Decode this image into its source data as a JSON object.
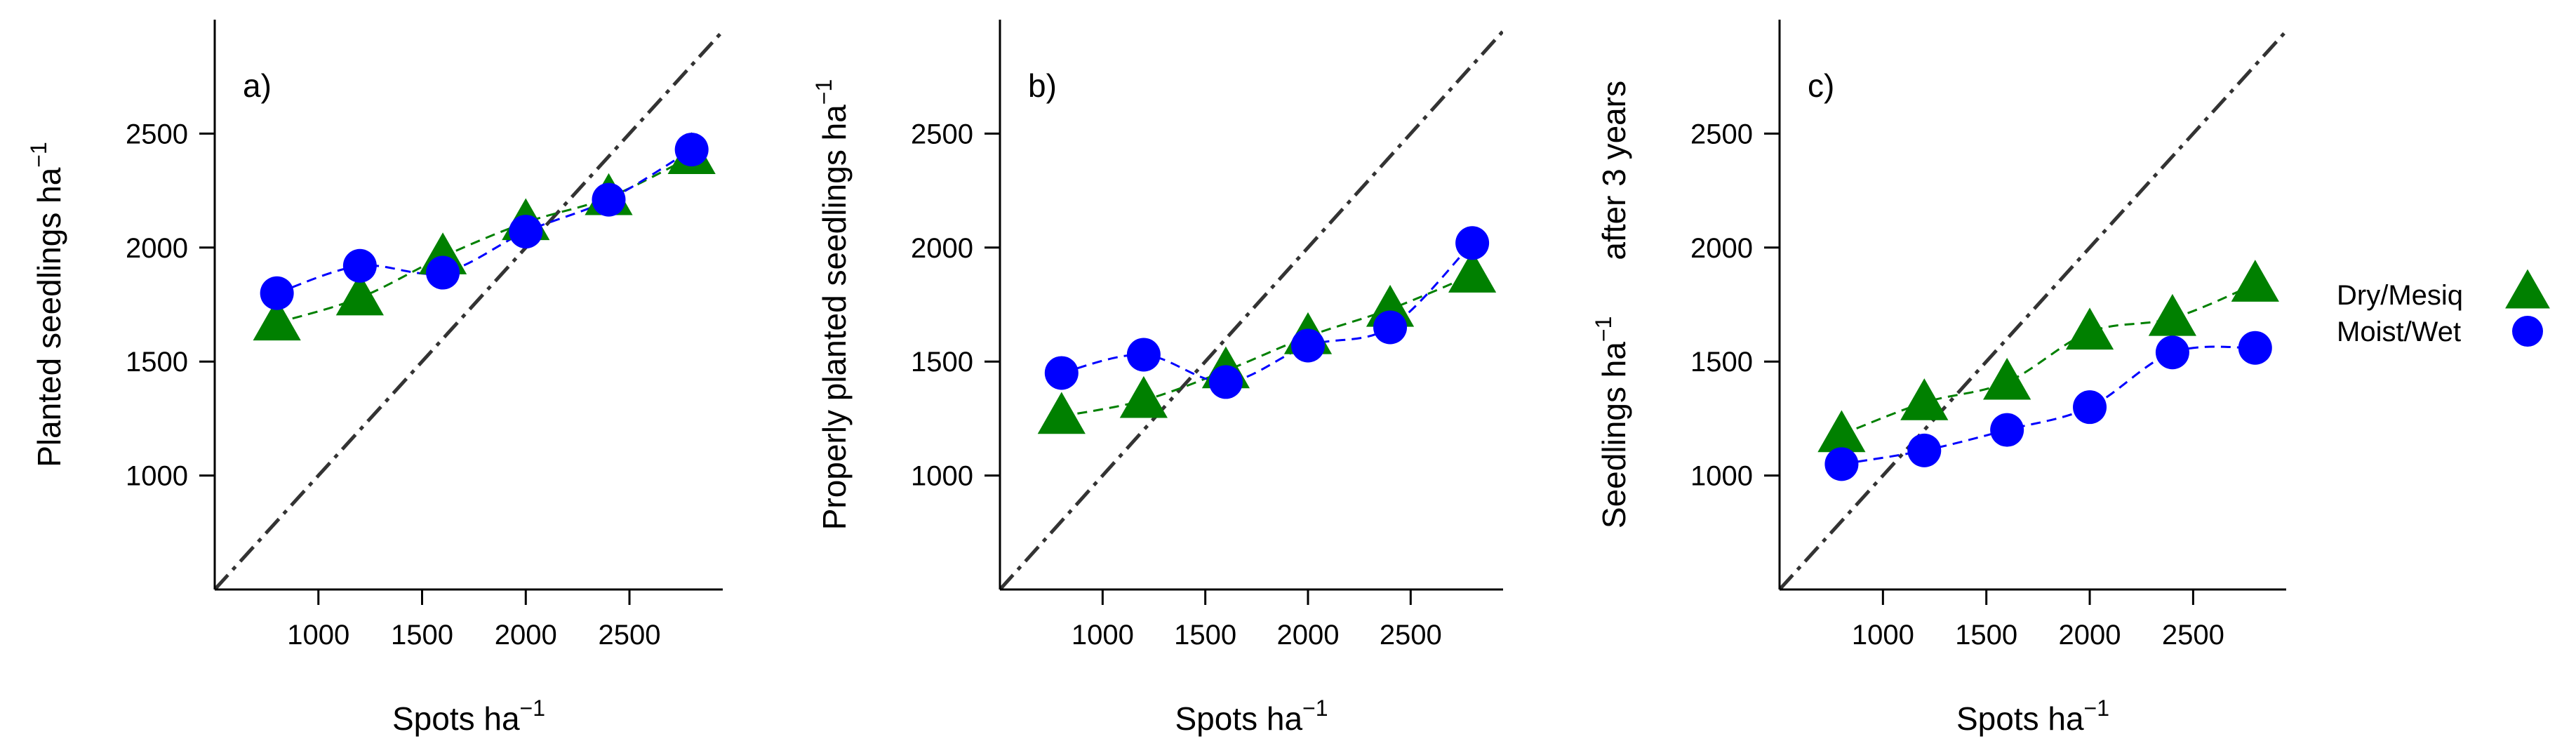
{
  "chart_data": [
    {
      "type": "scatter",
      "panel_label": "a)",
      "xlabel": "Spots  ha",
      "xlabel_sup": "−1",
      "ylabel": "Planted seedlings ha",
      "ylabel_sup": "−1",
      "xlim": [
        500,
        2950
      ],
      "ylim": [
        500,
        3000
      ],
      "xticks": [
        1000,
        1500,
        2000,
        2500
      ],
      "yticks": [
        1000,
        1500,
        2000,
        2500
      ],
      "reference_line": "1:1",
      "grid": false,
      "series": [
        {
          "name": "Dry/Mesiq",
          "marker": "triangle",
          "color": "#008000",
          "x": [
            800,
            1200,
            1600,
            2000,
            2400,
            2800
          ],
          "y": [
            1670,
            1780,
            1960,
            2110,
            2220,
            2400
          ]
        },
        {
          "name": "Moist/Wet",
          "marker": "circle",
          "color": "#0000FF",
          "x": [
            800,
            1200,
            1600,
            2000,
            2400,
            2800
          ],
          "y": [
            1800,
            1920,
            1890,
            2070,
            2210,
            2430
          ]
        }
      ]
    },
    {
      "type": "scatter",
      "panel_label": "b)",
      "xlabel": "Spots  ha",
      "xlabel_sup": "−1",
      "ylabel": "Properly planted seedlings ha",
      "ylabel_sup": "−1",
      "xlim": [
        500,
        2950
      ],
      "ylim": [
        500,
        3000
      ],
      "xticks": [
        1000,
        1500,
        2000,
        2500
      ],
      "yticks": [
        1000,
        1500,
        2000,
        2500
      ],
      "reference_line": "1:1",
      "grid": false,
      "series": [
        {
          "name": "Dry/Mesiq",
          "marker": "triangle",
          "color": "#008000",
          "x": [
            800,
            1200,
            1600,
            2000,
            2400,
            2800
          ],
          "y": [
            1260,
            1330,
            1460,
            1610,
            1730,
            1880
          ]
        },
        {
          "name": "Moist/Wet",
          "marker": "circle",
          "color": "#0000FF",
          "x": [
            800,
            1200,
            1600,
            2000,
            2400,
            2800
          ],
          "y": [
            1450,
            1530,
            1410,
            1570,
            1650,
            2020
          ]
        }
      ]
    },
    {
      "type": "scatter",
      "panel_label": "c)",
      "xlabel": "Spots  ha",
      "xlabel_sup": "−1",
      "ylabel": "Seedlings  ha",
      "ylabel_sup": "−1",
      "ylabel_suffix": "after 3 years",
      "xlim": [
        500,
        2950
      ],
      "ylim": [
        500,
        3000
      ],
      "xticks": [
        1000,
        1500,
        2000,
        2500
      ],
      "yticks": [
        1000,
        1500,
        2000,
        2500
      ],
      "reference_line": "1:1",
      "grid": false,
      "series": [
        {
          "name": "Dry/Mesiq",
          "marker": "triangle",
          "color": "#008000",
          "x": [
            800,
            1200,
            1600,
            2000,
            2400,
            2800
          ],
          "y": [
            1180,
            1320,
            1410,
            1630,
            1690,
            1840
          ]
        },
        {
          "name": "Moist/Wet",
          "marker": "circle",
          "color": "#0000FF",
          "x": [
            800,
            1200,
            1600,
            2000,
            2400,
            2800
          ],
          "y": [
            1050,
            1110,
            1200,
            1300,
            1540,
            1560
          ]
        }
      ]
    }
  ],
  "legend": {
    "placement": "right",
    "items": [
      {
        "label": "Dry/Mesiq",
        "marker": "triangle",
        "color": "#008000"
      },
      {
        "label": "Moist/Wet",
        "marker": "circle",
        "color": "#0000FF"
      }
    ]
  },
  "colors": {
    "reference_line": "#333333",
    "axis": "#000000"
  }
}
